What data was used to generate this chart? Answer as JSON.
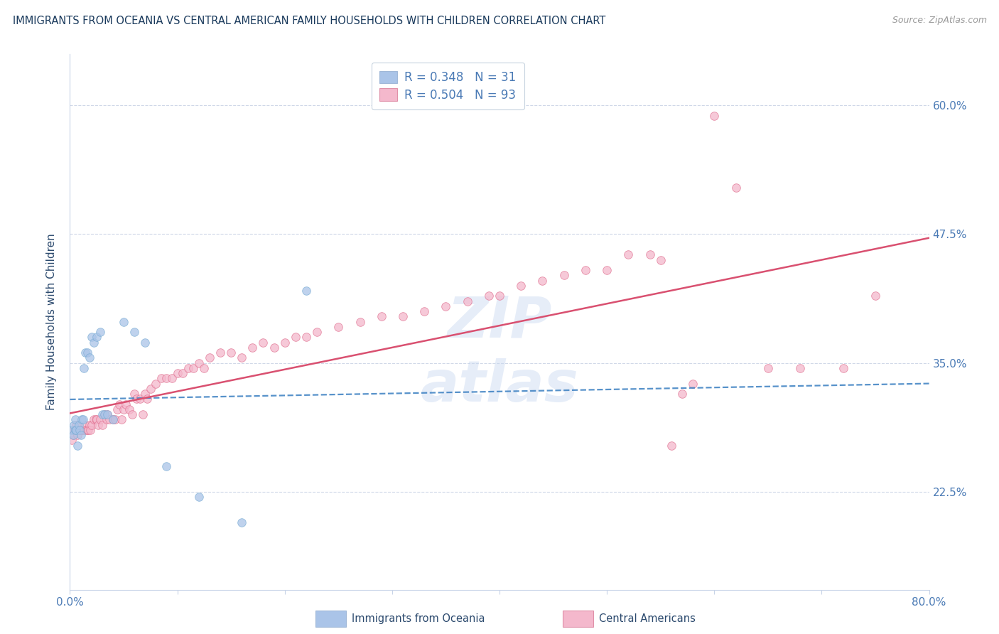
{
  "title": "IMMIGRANTS FROM OCEANIA VS CENTRAL AMERICAN FAMILY HOUSEHOLDS WITH CHILDREN CORRELATION CHART",
  "source": "Source: ZipAtlas.com",
  "ylabel": "Family Households with Children",
  "xlim": [
    0.0,
    0.8
  ],
  "ylim": [
    0.13,
    0.65
  ],
  "ytick_positions": [
    0.225,
    0.35,
    0.475,
    0.6
  ],
  "ytick_labels": [
    "22.5%",
    "35.0%",
    "47.5%",
    "60.0%"
  ],
  "legend_blue_r": "R = 0.348",
  "legend_blue_n": "N = 31",
  "legend_pink_r": "R = 0.504",
  "legend_pink_n": "N = 93",
  "legend_label_blue": "Immigrants from Oceania",
  "legend_label_pink": "Central Americans",
  "blue_color": "#aac4e8",
  "blue_edge_color": "#7aadd4",
  "pink_color": "#f4b8cc",
  "pink_edge_color": "#e07090",
  "blue_line_color": "#3a7fc1",
  "pink_line_color": "#d95070",
  "title_color": "#1a3a5c",
  "axis_color": "#4a7ab5",
  "text_color": "#2c4a6e",
  "background_color": "#ffffff",
  "grid_color": "#d0d8e8",
  "marker_size": 70,
  "marker_alpha": 0.75,
  "blue_x": [
    0.002,
    0.003,
    0.004,
    0.005,
    0.005,
    0.006,
    0.007,
    0.008,
    0.009,
    0.01,
    0.011,
    0.012,
    0.013,
    0.014,
    0.016,
    0.018,
    0.02,
    0.022,
    0.025,
    0.028,
    0.03,
    0.032,
    0.035,
    0.04,
    0.05,
    0.06,
    0.07,
    0.09,
    0.12,
    0.16,
    0.22
  ],
  "blue_y": [
    0.285,
    0.28,
    0.29,
    0.285,
    0.295,
    0.285,
    0.27,
    0.29,
    0.285,
    0.28,
    0.295,
    0.295,
    0.345,
    0.36,
    0.36,
    0.355,
    0.375,
    0.37,
    0.375,
    0.38,
    0.3,
    0.3,
    0.3,
    0.295,
    0.39,
    0.38,
    0.37,
    0.25,
    0.22,
    0.195,
    0.42
  ],
  "pink_x": [
    0.002,
    0.003,
    0.004,
    0.005,
    0.006,
    0.006,
    0.007,
    0.008,
    0.009,
    0.01,
    0.011,
    0.012,
    0.013,
    0.014,
    0.015,
    0.016,
    0.017,
    0.018,
    0.019,
    0.02,
    0.022,
    0.024,
    0.025,
    0.026,
    0.028,
    0.03,
    0.032,
    0.034,
    0.035,
    0.037,
    0.04,
    0.042,
    0.044,
    0.046,
    0.048,
    0.05,
    0.052,
    0.055,
    0.058,
    0.06,
    0.062,
    0.065,
    0.068,
    0.07,
    0.072,
    0.075,
    0.08,
    0.085,
    0.09,
    0.095,
    0.1,
    0.105,
    0.11,
    0.115,
    0.12,
    0.125,
    0.13,
    0.14,
    0.15,
    0.16,
    0.17,
    0.18,
    0.19,
    0.2,
    0.21,
    0.22,
    0.23,
    0.25,
    0.27,
    0.29,
    0.31,
    0.33,
    0.35,
    0.37,
    0.39,
    0.4,
    0.42,
    0.44,
    0.46,
    0.48,
    0.5,
    0.52,
    0.54,
    0.55,
    0.56,
    0.57,
    0.58,
    0.6,
    0.62,
    0.65,
    0.68,
    0.72,
    0.75
  ],
  "pink_y": [
    0.275,
    0.28,
    0.285,
    0.285,
    0.285,
    0.29,
    0.28,
    0.285,
    0.285,
    0.285,
    0.285,
    0.285,
    0.285,
    0.29,
    0.285,
    0.285,
    0.285,
    0.29,
    0.285,
    0.29,
    0.295,
    0.295,
    0.295,
    0.29,
    0.295,
    0.29,
    0.3,
    0.295,
    0.3,
    0.295,
    0.295,
    0.295,
    0.305,
    0.31,
    0.295,
    0.305,
    0.31,
    0.305,
    0.3,
    0.32,
    0.315,
    0.315,
    0.3,
    0.32,
    0.315,
    0.325,
    0.33,
    0.335,
    0.335,
    0.335,
    0.34,
    0.34,
    0.345,
    0.345,
    0.35,
    0.345,
    0.355,
    0.36,
    0.36,
    0.355,
    0.365,
    0.37,
    0.365,
    0.37,
    0.375,
    0.375,
    0.38,
    0.385,
    0.39,
    0.395,
    0.395,
    0.4,
    0.405,
    0.41,
    0.415,
    0.415,
    0.425,
    0.43,
    0.435,
    0.44,
    0.44,
    0.455,
    0.455,
    0.45,
    0.27,
    0.32,
    0.33,
    0.59,
    0.52,
    0.345,
    0.345,
    0.345,
    0.415
  ]
}
